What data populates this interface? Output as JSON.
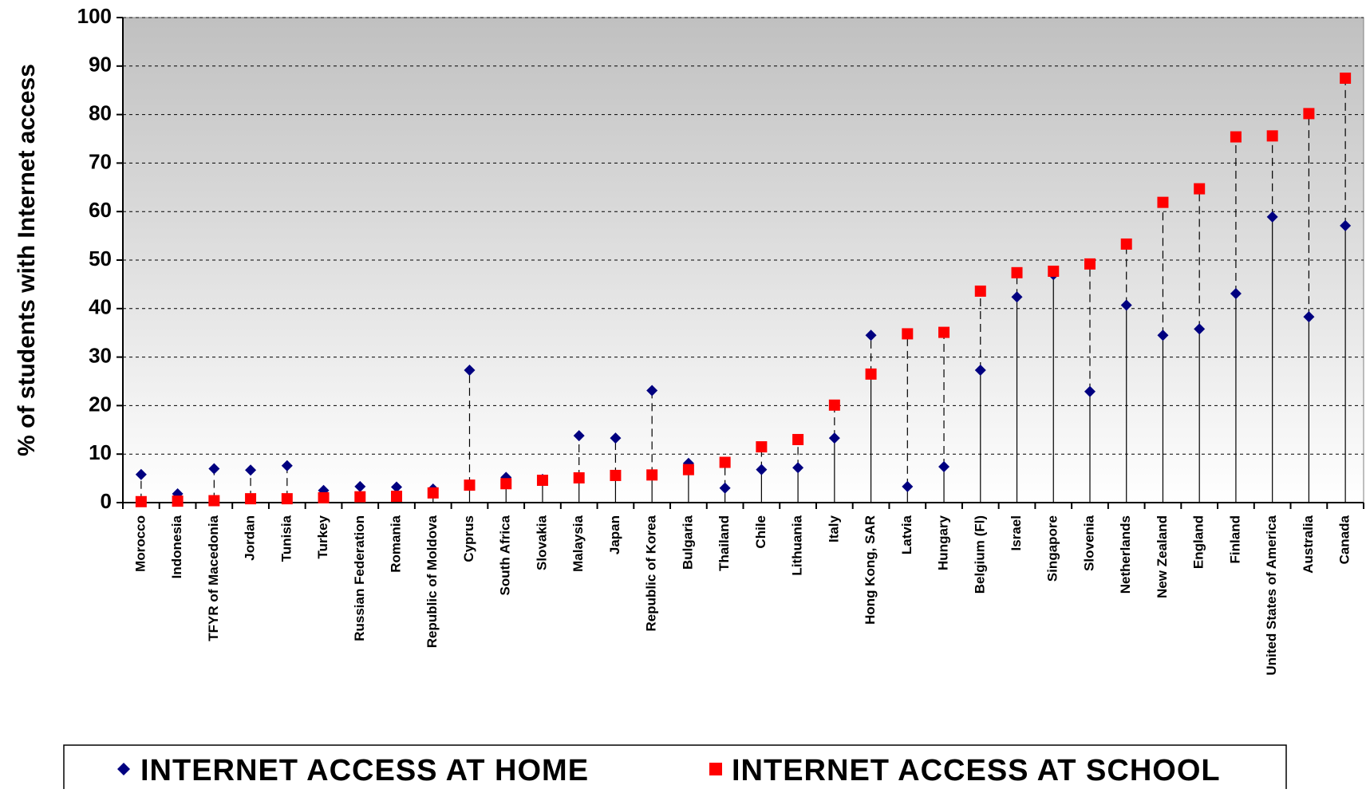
{
  "chart_data": {
    "type": "scatter",
    "title": "",
    "xlabel": "",
    "ylabel": "% of students with Internet access",
    "ylim": [
      0,
      100
    ],
    "yticks": [
      "0",
      "10",
      "20",
      "30",
      "40",
      "50",
      "60",
      "70",
      "80",
      "90",
      "100"
    ],
    "grid": true,
    "legend_position": "bottom",
    "categories": [
      "Morocco",
      "Indonesia",
      "TFYR of Macedonia",
      "Jordan",
      "Tunisia",
      "Turkey",
      "Russian Federation",
      "Romania",
      "Republic of Moldova",
      "Cyprus",
      "South Africa",
      "Slovakia",
      "Malaysia",
      "Japan",
      "Republic of Korea",
      "Bulgaria",
      "Thailand",
      "Chile",
      "Lithuania",
      "Italy",
      "Hong Kong, SAR",
      "Latvia",
      "Hungary",
      "Belgium (Fl)",
      "Israel",
      "Singapore",
      "Slovenia",
      "Netherlands",
      "New Zealand",
      "England",
      "Finland",
      "United States of America",
      "Australia",
      "Canada"
    ],
    "series": [
      {
        "name": "INTERNET ACCESS AT HOME",
        "marker": "diamond",
        "color": "#000080",
        "values": [
          5.8,
          1.8,
          7,
          6.7,
          7.6,
          2.5,
          3.3,
          3.2,
          2.8,
          27.3,
          5.2,
          4.8,
          13.8,
          13.3,
          23.1,
          8.1,
          3,
          6.8,
          7.2,
          13.3,
          34.5,
          3.3,
          7.4,
          27.3,
          42.4,
          47,
          22.9,
          40.7,
          34.5,
          35.8,
          43.1,
          58.9,
          38.3,
          57.1
        ]
      },
      {
        "name": "INTERNET ACCESS AT SCHOOL",
        "marker": "square",
        "color": "#ff0000",
        "values": [
          0.2,
          0.3,
          0.4,
          0.8,
          0.8,
          1,
          1.2,
          1.3,
          2,
          3.6,
          3.9,
          4.6,
          5.1,
          5.6,
          5.7,
          6.8,
          8.3,
          11.5,
          13,
          20.1,
          26.5,
          34.8,
          35.1,
          43.6,
          47.4,
          47.7,
          49.2,
          53.3,
          61.9,
          64.7,
          75.4,
          75.6,
          80.2,
          87.5
        ]
      }
    ]
  },
  "colors": {
    "plot_gradient_top": "#c0c0c0",
    "plot_gradient_bottom": "#ffffff",
    "home_marker": "#000080",
    "school_marker": "#ff0000"
  }
}
